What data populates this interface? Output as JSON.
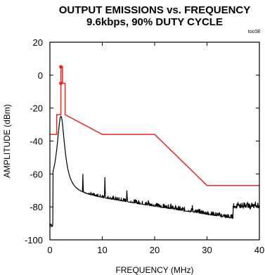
{
  "chart_data": {
    "type": "line",
    "title": "OUTPUT EMISSIONS vs. FREQUENCY",
    "subtitle": "9.6kbps, 90% DUTY CYCLE",
    "tag": "toc08",
    "xlabel": "FREQUENCY (MHz)",
    "ylabel": "AMPLITUDE (dBm)",
    "xlim": [
      0,
      40
    ],
    "ylim": [
      -100,
      20
    ],
    "xticks": [
      "0",
      "10",
      "20",
      "30",
      "40"
    ],
    "yticks": [
      "20",
      "0",
      "-20",
      "-40",
      "-60",
      "-80",
      "-100"
    ],
    "grid": false,
    "series": [
      {
        "name": "",
        "color": "#e8231f",
        "x": [
          0,
          1.3,
          1.3,
          2.1,
          2.1,
          2.4,
          2.4,
          2.9,
          2.9,
          10,
          20,
          30,
          40
        ],
        "y": [
          -36,
          -36,
          -24,
          -24,
          5,
          5,
          -5,
          -5,
          -24,
          -36,
          -36,
          -67,
          -67
        ],
        "markers": [
          [
            2.1,
            5
          ],
          [
            2.1,
            -5
          ]
        ]
      },
      {
        "name": "",
        "color": "#000000",
        "peaks": [
          [
            2.1,
            -25
          ],
          [
            6.3,
            -60
          ],
          [
            10.5,
            -62
          ],
          [
            14.7,
            -70
          ],
          [
            18.8,
            -76
          ],
          [
            23.1,
            -78
          ],
          [
            27.2,
            -79
          ]
        ],
        "floor_start": -70,
        "floor_end": -87,
        "x_end": 40
      }
    ]
  }
}
